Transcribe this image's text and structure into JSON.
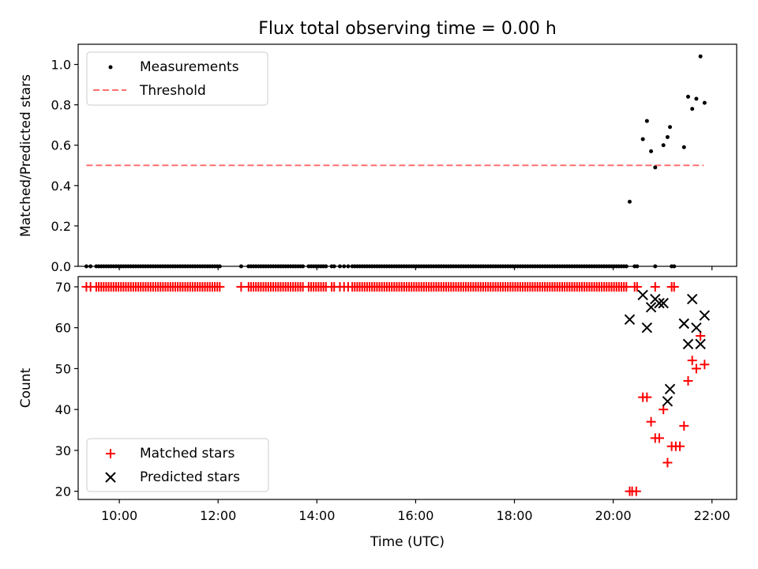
{
  "figure": {
    "title": "Flux total observing time = 0.00 h",
    "xlabel": "Time (UTC)"
  },
  "chart_data": [
    {
      "type": "scatter",
      "ylabel": "Matched/Predicted stars",
      "xlim": [
        "09:10",
        "22:30"
      ],
      "ylim": [
        0,
        1.1
      ],
      "yticks": [
        0.0,
        0.2,
        0.4,
        0.6,
        0.8,
        1.0
      ],
      "ytick_labels": [
        "0.0",
        "0.2",
        "0.4",
        "0.6",
        "0.8",
        "1.0"
      ],
      "legend_position": "upper-left",
      "series": [
        {
          "name": "Measurements",
          "kind": "points",
          "color": "#000000",
          "zero_run_times": [
            [
              "09:20",
              "09:25",
              "09:32",
              "09:35",
              "09:38",
              "09:41",
              "09:44",
              "09:47",
              "09:50",
              "09:53",
              "09:56",
              "09:59",
              "10:02",
              "10:05",
              "10:08",
              "10:11",
              "10:14",
              "10:17",
              "10:20",
              "10:23",
              "10:26",
              "10:29",
              "10:32",
              "10:35",
              "10:38",
              "10:41",
              "10:44",
              "10:47",
              "10:50",
              "10:53",
              "10:56",
              "10:59",
              "11:02",
              "11:05",
              "11:08",
              "11:11",
              "11:14",
              "11:17",
              "11:20",
              "11:23",
              "11:26",
              "11:29",
              "11:32",
              "11:35",
              "11:38",
              "11:41",
              "11:44",
              "11:47",
              "11:50",
              "11:53",
              "11:56",
              "11:59",
              "12:02"
            ],
            [
              "12:28",
              "12:37",
              "12:40",
              "12:43",
              "12:46",
              "12:49",
              "12:52",
              "12:55",
              "12:58",
              "13:01",
              "13:04",
              "13:07",
              "13:10",
              "13:13",
              "13:16",
              "13:19",
              "13:22",
              "13:25",
              "13:28",
              "13:31",
              "13:34",
              "13:37",
              "13:40",
              "13:43"
            ],
            [
              "13:50",
              "13:53",
              "13:56",
              "13:59",
              "14:02",
              "14:05",
              "14:08",
              "14:11",
              "14:18",
              "14:21",
              "14:28",
              "14:33",
              "14:38",
              "14:43",
              "14:46",
              "14:49",
              "14:52",
              "14:55",
              "14:58",
              "15:01",
              "15:04",
              "15:07",
              "15:10",
              "15:13",
              "15:16",
              "15:19",
              "15:22",
              "15:25",
              "15:28",
              "15:31",
              "15:34",
              "15:37",
              "15:40",
              "15:43",
              "15:46",
              "15:49",
              "15:52",
              "15:55",
              "15:58",
              "16:01",
              "16:04",
              "16:07",
              "16:10",
              "16:13",
              "16:16",
              "16:19",
              "16:22",
              "16:25",
              "16:28",
              "16:31",
              "16:34",
              "16:37",
              "16:40",
              "16:43",
              "16:46",
              "16:49",
              "16:52",
              "16:55",
              "16:58",
              "17:01",
              "17:04",
              "17:07",
              "17:10",
              "17:13",
              "17:16",
              "17:19",
              "17:22",
              "17:25",
              "17:28",
              "17:31",
              "17:34",
              "17:37",
              "17:40",
              "17:43",
              "17:46",
              "17:49",
              "17:52",
              "17:55",
              "17:58",
              "18:01",
              "18:04",
              "18:07",
              "18:10",
              "18:13",
              "18:16",
              "18:19",
              "18:22",
              "18:25",
              "18:28",
              "18:31",
              "18:34",
              "18:37",
              "18:40",
              "18:43",
              "18:46",
              "18:49",
              "18:52",
              "18:55",
              "18:58",
              "19:01",
              "19:04",
              "19:07",
              "19:10",
              "19:13",
              "19:16",
              "19:19",
              "19:22",
              "19:25",
              "19:28",
              "19:31",
              "19:34",
              "19:37",
              "19:40",
              "19:43",
              "19:46",
              "19:49",
              "19:52",
              "19:55",
              "19:58",
              "20:01",
              "20:04",
              "20:07",
              "20:10",
              "20:13",
              "20:16"
            ],
            [
              "20:26",
              "20:29",
              "20:51",
              "21:11",
              "21:14"
            ]
          ],
          "points": [
            {
              "x": "20:20",
              "y": 0.32
            },
            {
              "x": "20:36",
              "y": 0.63
            },
            {
              "x": "20:41",
              "y": 0.72
            },
            {
              "x": "20:46",
              "y": 0.57
            },
            {
              "x": "20:51",
              "y": 0.49
            },
            {
              "x": "21:01",
              "y": 0.6
            },
            {
              "x": "21:06",
              "y": 0.64
            },
            {
              "x": "21:09",
              "y": 0.69
            },
            {
              "x": "21:26",
              "y": 0.59
            },
            {
              "x": "21:31",
              "y": 0.84
            },
            {
              "x": "21:36",
              "y": 0.78
            },
            {
              "x": "21:41",
              "y": 0.83
            },
            {
              "x": "21:46",
              "y": 1.04
            },
            {
              "x": "21:51",
              "y": 0.81
            }
          ]
        },
        {
          "name": "Threshold",
          "kind": "line",
          "color": "#ff7070",
          "x": [
            "09:20",
            "21:50"
          ],
          "values": [
            0.5,
            0.5
          ]
        }
      ]
    },
    {
      "type": "scatter",
      "ylabel": "Count",
      "xlim": [
        "09:10",
        "22:30"
      ],
      "ylim": [
        18,
        72.5
      ],
      "yticks": [
        20,
        30,
        40,
        50,
        60,
        70
      ],
      "ytick_labels": [
        "20",
        "30",
        "40",
        "50",
        "60",
        "70"
      ],
      "xticks": [
        "10:00",
        "12:00",
        "14:00",
        "16:00",
        "18:00",
        "20:00",
        "22:00"
      ],
      "xtick_labels": [
        "10:00",
        "12:00",
        "14:00",
        "16:00",
        "18:00",
        "20:00",
        "22:00"
      ],
      "legend_position": "lower-left",
      "series": [
        {
          "name": "Matched stars",
          "marker": "plus",
          "color": "#ff0000",
          "constant_run_value": 70,
          "points": [
            {
              "x": "20:20",
              "y": 20
            },
            {
              "x": "20:23",
              "y": 20
            },
            {
              "x": "20:28",
              "y": 20
            },
            {
              "x": "20:36",
              "y": 43
            },
            {
              "x": "20:41",
              "y": 43
            },
            {
              "x": "20:46",
              "y": 37
            },
            {
              "x": "20:51",
              "y": 33
            },
            {
              "x": "20:56",
              "y": 33
            },
            {
              "x": "21:01",
              "y": 40
            },
            {
              "x": "21:06",
              "y": 27
            },
            {
              "x": "21:11",
              "y": 31
            },
            {
              "x": "21:16",
              "y": 31
            },
            {
              "x": "21:21",
              "y": 31
            },
            {
              "x": "21:26",
              "y": 36
            },
            {
              "x": "21:31",
              "y": 47
            },
            {
              "x": "21:36",
              "y": 52
            },
            {
              "x": "21:41",
              "y": 50
            },
            {
              "x": "21:46",
              "y": 58
            },
            {
              "x": "21:51",
              "y": 51
            }
          ]
        },
        {
          "name": "Predicted stars",
          "marker": "x",
          "color": "#000000",
          "points": [
            {
              "x": "20:20",
              "y": 62
            },
            {
              "x": "20:36",
              "y": 68
            },
            {
              "x": "20:41",
              "y": 60
            },
            {
              "x": "20:46",
              "y": 65
            },
            {
              "x": "20:51",
              "y": 67
            },
            {
              "x": "20:56",
              "y": 66
            },
            {
              "x": "21:01",
              "y": 66
            },
            {
              "x": "21:06",
              "y": 42
            },
            {
              "x": "21:09",
              "y": 45
            },
            {
              "x": "21:26",
              "y": 61
            },
            {
              "x": "21:31",
              "y": 56
            },
            {
              "x": "21:36",
              "y": 67
            },
            {
              "x": "21:41",
              "y": 60
            },
            {
              "x": "21:46",
              "y": 56
            },
            {
              "x": "21:51",
              "y": 63
            }
          ]
        }
      ]
    }
  ]
}
